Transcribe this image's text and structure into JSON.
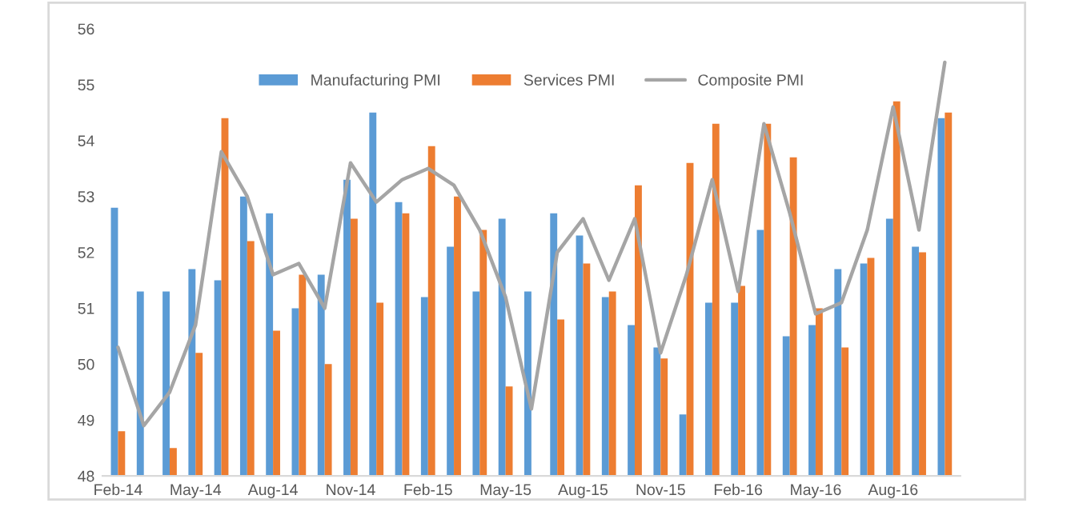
{
  "chart_data": {
    "type": "bar",
    "categories": [
      "Feb-14",
      null,
      null,
      "May-14",
      null,
      null,
      "Aug-14",
      null,
      null,
      "Nov-14",
      null,
      null,
      "Feb-15",
      null,
      null,
      "May-15",
      null,
      null,
      "Aug-15",
      null,
      null,
      "Nov-15",
      null,
      null,
      "Feb-16",
      null,
      null,
      "May-16",
      null,
      null,
      "Aug-16",
      null,
      null
    ],
    "series": [
      {
        "name": "Manufacturing PMI",
        "color": "#5b9bd5",
        "values": [
          52.8,
          51.3,
          51.3,
          51.7,
          51.5,
          53.0,
          52.7,
          51.0,
          51.6,
          53.3,
          54.5,
          52.9,
          51.2,
          52.1,
          51.3,
          52.6,
          51.3,
          52.7,
          52.3,
          51.2,
          50.7,
          50.3,
          49.1,
          51.1,
          51.1,
          52.4,
          50.5,
          50.7,
          51.7,
          51.8,
          52.6,
          52.1,
          54.4
        ]
      },
      {
        "name": "Services PMI",
        "color": "#ed7d31",
        "values": [
          48.8,
          null,
          48.5,
          50.2,
          54.4,
          52.2,
          50.6,
          51.6,
          50.0,
          52.6,
          51.1,
          52.7,
          53.9,
          53.0,
          52.4,
          49.6,
          null,
          50.8,
          51.8,
          51.3,
          53.2,
          50.1,
          53.6,
          54.3,
          51.4,
          54.3,
          53.7,
          51.0,
          50.3,
          51.9,
          54.7,
          52.0,
          54.5
        ]
      },
      {
        "name": "Composite PMI",
        "type": "line",
        "color": "#a5a5a5",
        "values": [
          50.3,
          48.9,
          49.5,
          50.7,
          53.8,
          53.0,
          51.6,
          51.8,
          51.0,
          53.6,
          52.9,
          53.3,
          53.5,
          53.2,
          52.4,
          51.2,
          49.2,
          52.0,
          52.6,
          51.5,
          52.6,
          50.2,
          51.6,
          53.3,
          51.3,
          54.3,
          52.7,
          50.9,
          51.1,
          52.4,
          54.6,
          52.4,
          55.4
        ]
      }
    ],
    "ylim": [
      48,
      56
    ],
    "yticks": [
      48,
      49,
      50,
      51,
      52,
      53,
      54,
      55,
      56
    ],
    "legend": "top",
    "grid": false,
    "marker": "none",
    "line_style": "solid"
  }
}
